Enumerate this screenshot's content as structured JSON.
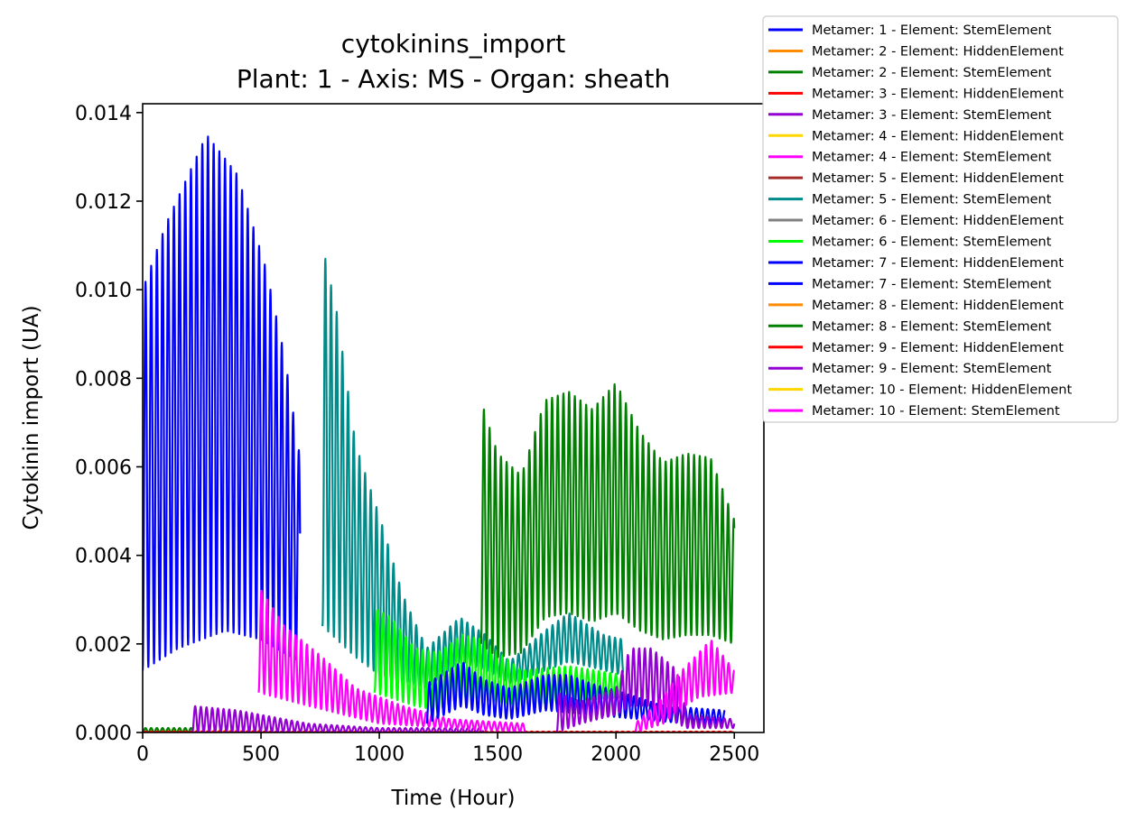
{
  "chart_data": {
    "type": "line",
    "title": "cytokinins_import",
    "subtitle": "Plant: 1 - Axis: MS - Organ: sheath",
    "xlabel": "Time (Hour)",
    "ylabel": "Cytokinin import (UA)",
    "xlim": [
      0,
      2625
    ],
    "ylim": [
      0,
      0.0142
    ],
    "xticks": [
      0,
      500,
      1000,
      1500,
      2000,
      2500
    ],
    "xtick_labels": [
      "0",
      "500",
      "1000",
      "1500",
      "2000",
      "2500"
    ],
    "yticks": [
      0,
      0.002,
      0.004,
      0.006,
      0.008,
      0.01,
      0.012,
      0.014
    ],
    "ytick_labels": [
      "0.000",
      "0.002",
      "0.004",
      "0.006",
      "0.008",
      "0.010",
      "0.012",
      "0.014"
    ],
    "grid": false,
    "legend_position": "outside-top-right",
    "series": [
      {
        "name": "Metamer: 1 - Element: StemElement",
        "color": "#0000ff",
        "segments": [
          {
            "start": 0,
            "end": 665,
            "max": [
              [
                0,
                0.01
              ],
              [
                100,
                0.0115
              ],
              [
                270,
                0.0135
              ],
              [
                400,
                0.0126
              ],
              [
                520,
                0.0105
              ],
              [
                600,
                0.0085
              ],
              [
                665,
                0.0062
              ]
            ],
            "min": [
              [
                0,
                0.0014
              ],
              [
                150,
                0.0019
              ],
              [
                350,
                0.0023
              ],
              [
                500,
                0.0021
              ],
              [
                665,
                0.0016
              ]
            ]
          }
        ]
      },
      {
        "name": "Metamer: 2 - Element: HiddenElement",
        "color": "#ff8c00",
        "segments": [
          {
            "start": 0,
            "end": 500,
            "max": [
              [
                0,
                3e-05
              ],
              [
                500,
                4e-05
              ]
            ],
            "min": [
              [
                0,
                0.0
              ],
              [
                500,
                0.0
              ]
            ]
          }
        ]
      },
      {
        "name": "Metamer: 2 - Element: StemElement",
        "color": "#008000",
        "segments": [
          {
            "start": 0,
            "end": 210,
            "max": [
              [
                0,
                0.0001
              ],
              [
                210,
                0.0001
              ]
            ],
            "min": [
              [
                0,
                0.0
              ],
              [
                210,
                0.0
              ]
            ]
          }
        ]
      },
      {
        "name": "Metamer: 3 - Element: HiddenElement",
        "color": "#ff0000",
        "segments": [
          {
            "start": 0,
            "end": 2500,
            "max": [
              [
                0,
                2e-05
              ],
              [
                2500,
                2e-05
              ]
            ],
            "min": [
              [
                0,
                0.0
              ],
              [
                2500,
                0.0
              ]
            ]
          }
        ]
      },
      {
        "name": "Metamer: 3 - Element: StemElement",
        "color": "#9400d3",
        "segments": [
          {
            "start": 210,
            "end": 1440,
            "max": [
              [
                210,
                0.0006
              ],
              [
                400,
                0.0005
              ],
              [
                700,
                0.0002
              ],
              [
                1000,
                0.0001
              ],
              [
                1440,
                0.0001
              ]
            ],
            "min": [
              [
                210,
                0.0
              ],
              [
                700,
                0.0
              ],
              [
                1440,
                0.0
              ]
            ]
          }
        ]
      },
      {
        "name": "Metamer: 4 - Element: HiddenElement",
        "color": "#ffd700",
        "segments": []
      },
      {
        "name": "Metamer: 4 - Element: StemElement",
        "color": "#ff00ff",
        "segments": [
          {
            "start": 490,
            "end": 1620,
            "max": [
              [
                490,
                0.0033
              ],
              [
                600,
                0.0024
              ],
              [
                760,
                0.0017
              ],
              [
                900,
                0.001
              ],
              [
                1100,
                0.0006
              ],
              [
                1300,
                0.0003
              ],
              [
                1620,
                0.0002
              ]
            ],
            "min": [
              [
                490,
                0.0009
              ],
              [
                700,
                0.0006
              ],
              [
                1000,
                0.0002
              ],
              [
                1620,
                0.0
              ]
            ]
          }
        ]
      },
      {
        "name": "Metamer: 5 - Element: HiddenElement",
        "color": "#a52a2a",
        "segments": []
      },
      {
        "name": "Metamer: 5 - Element: StemElement",
        "color": "#008b8b",
        "segments": [
          {
            "start": 760,
            "end": 2030,
            "max": [
              [
                760,
                0.011
              ],
              [
                820,
                0.0095
              ],
              [
                900,
                0.0065
              ],
              [
                1000,
                0.0049
              ],
              [
                1100,
                0.0031
              ],
              [
                1200,
                0.0019
              ],
              [
                1340,
                0.0026
              ],
              [
                1450,
                0.0022
              ],
              [
                1550,
                0.0016
              ],
              [
                1700,
                0.0023
              ],
              [
                1800,
                0.0027
              ],
              [
                1950,
                0.0022
              ],
              [
                2030,
                0.0021
              ]
            ],
            "min": [
              [
                760,
                0.0024
              ],
              [
                900,
                0.0017
              ],
              [
                1000,
                0.0013
              ],
              [
                1200,
                0.001
              ],
              [
                1340,
                0.0016
              ],
              [
                1450,
                0.0014
              ],
              [
                1550,
                0.0011
              ],
              [
                1700,
                0.0014
              ],
              [
                1800,
                0.0016
              ],
              [
                2030,
                0.0013
              ]
            ]
          }
        ]
      },
      {
        "name": "Metamer: 6 - Element: HiddenElement",
        "color": "#808080",
        "segments": []
      },
      {
        "name": "Metamer: 6 - Element: StemElement",
        "color": "#00ff00",
        "segments": [
          {
            "start": 980,
            "end": 2030,
            "max": [
              [
                980,
                0.0028
              ],
              [
                1050,
                0.0026
              ],
              [
                1150,
                0.0019
              ],
              [
                1250,
                0.0018
              ],
              [
                1350,
                0.0022
              ],
              [
                1440,
                0.0021
              ],
              [
                1600,
                0.0014
              ],
              [
                1800,
                0.0015
              ],
              [
                2030,
                0.0013
              ]
            ],
            "min": [
              [
                980,
                0.0009
              ],
              [
                1150,
                0.0006
              ],
              [
                1250,
                0.0005
              ],
              [
                1350,
                0.0008
              ],
              [
                1600,
                0.0006
              ],
              [
                1800,
                0.0007
              ],
              [
                2030,
                0.0008
              ]
            ]
          }
        ]
      },
      {
        "name": "Metamer: 7 - Element: HiddenElement",
        "color": "#0000ff",
        "segments": []
      },
      {
        "name": "Metamer: 7 - Element: StemElement",
        "color": "#0000ff",
        "segments": [
          {
            "start": 1200,
            "end": 2460,
            "max": [
              [
                1200,
                0.0011
              ],
              [
                1350,
                0.0016
              ],
              [
                1440,
                0.0012
              ],
              [
                1550,
                0.001
              ],
              [
                1700,
                0.0013
              ],
              [
                1800,
                0.0013
              ],
              [
                1900,
                0.0011
              ],
              [
                2030,
                0.0009
              ],
              [
                2200,
                0.0006
              ],
              [
                2460,
                0.0005
              ]
            ],
            "min": [
              [
                1200,
                0.0002
              ],
              [
                1350,
                0.0006
              ],
              [
                1440,
                0.0004
              ],
              [
                1550,
                0.0003
              ],
              [
                1700,
                0.0005
              ],
              [
                1900,
                0.0004
              ],
              [
                2100,
                0.0003
              ],
              [
                2300,
                0.0002
              ],
              [
                2460,
                0.0002
              ]
            ]
          }
        ]
      },
      {
        "name": "Metamer: 8 - Element: HiddenElement",
        "color": "#ff8c00",
        "segments": []
      },
      {
        "name": "Metamer: 8 - Element: StemElement",
        "color": "#008000",
        "segments": [
          {
            "start": 1430,
            "end": 2500,
            "max": [
              [
                1430,
                0.0075
              ],
              [
                1500,
                0.0063
              ],
              [
                1600,
                0.0058
              ],
              [
                1700,
                0.0075
              ],
              [
                1800,
                0.0077
              ],
              [
                1900,
                0.0073
              ],
              [
                2000,
                0.0079
              ],
              [
                2100,
                0.0068
              ],
              [
                2200,
                0.0061
              ],
              [
                2300,
                0.0063
              ],
              [
                2400,
                0.0062
              ],
              [
                2500,
                0.0048
              ]
            ],
            "min": [
              [
                1430,
                0.002
              ],
              [
                1500,
                0.0017
              ],
              [
                1600,
                0.0018
              ],
              [
                1700,
                0.0026
              ],
              [
                1800,
                0.0027
              ],
              [
                1900,
                0.0025
              ],
              [
                2000,
                0.0027
              ],
              [
                2100,
                0.0023
              ],
              [
                2200,
                0.0021
              ],
              [
                2300,
                0.0022
              ],
              [
                2400,
                0.0022
              ],
              [
                2500,
                0.002
              ]
            ]
          }
        ]
      },
      {
        "name": "Metamer: 9 - Element: HiddenElement",
        "color": "#ff0000",
        "segments": []
      },
      {
        "name": "Metamer: 9 - Element: StemElement",
        "color": "#9400d3",
        "segments": [
          {
            "start": 1750,
            "end": 2500,
            "max": [
              [
                1750,
                0.0009
              ],
              [
                1850,
                0.0007
              ],
              [
                2000,
                0.001
              ],
              [
                2060,
                0.0019
              ],
              [
                2150,
                0.0019
              ],
              [
                2260,
                0.0014
              ],
              [
                2300,
                0.0004
              ],
              [
                2500,
                0.0003
              ]
            ],
            "min": [
              [
                1750,
                0.0
              ],
              [
                1850,
                0.0002
              ],
              [
                2000,
                0.0004
              ],
              [
                2060,
                0.0006
              ],
              [
                2150,
                0.0006
              ],
              [
                2260,
                0.0002
              ],
              [
                2300,
                0.0001
              ],
              [
                2500,
                0.0001
              ]
            ]
          }
        ]
      },
      {
        "name": "Metamer: 10 - Element: HiddenElement",
        "color": "#ffd700",
        "segments": []
      },
      {
        "name": "Metamer: 10 - Element: StemElement",
        "color": "#ff00ff",
        "segments": [
          {
            "start": 2080,
            "end": 2500,
            "max": [
              [
                2080,
                0.0002
              ],
              [
                2200,
                0.0008
              ],
              [
                2260,
                0.0013
              ],
              [
                2350,
                0.0018
              ],
              [
                2400,
                0.0021
              ],
              [
                2500,
                0.0014
              ]
            ],
            "min": [
              [
                2080,
                0.0
              ],
              [
                2200,
                0.0002
              ],
              [
                2260,
                0.0005
              ],
              [
                2350,
                0.0008
              ],
              [
                2500,
                0.0009
              ]
            ]
          }
        ]
      }
    ]
  }
}
